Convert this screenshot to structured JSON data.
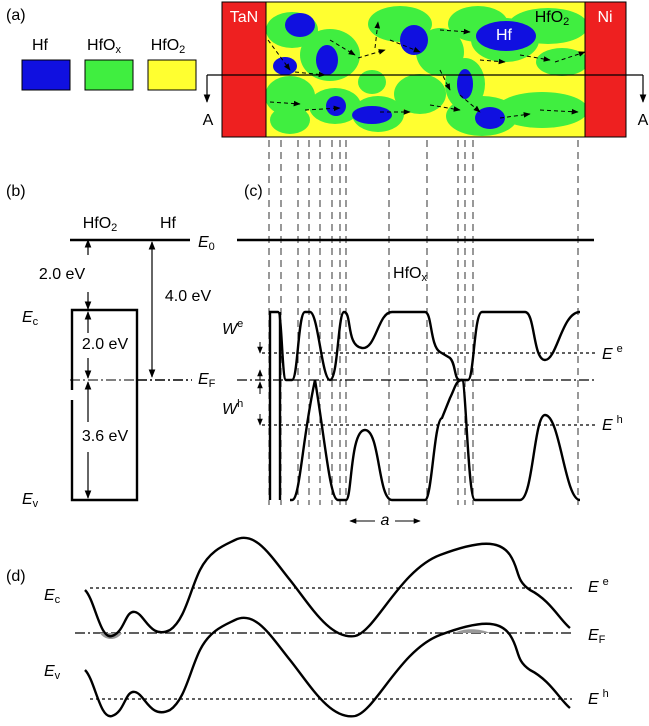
{
  "panel_labels": [
    "(a)",
    "(b)",
    "(c)",
    "(d)"
  ],
  "panel_a": {
    "electrode_left": "TaN",
    "electrode_right": "Ni",
    "electrode_color": "#ee2020",
    "matrix": {
      "base": "HfO",
      "sub": "2"
    },
    "cluster": "Hf",
    "section_left": "A",
    "section_right": "A",
    "legend": [
      {
        "base": "Hf",
        "color": "#1010e0"
      },
      {
        "base": "HfO",
        "sub": "x",
        "color": "#40ee40"
      },
      {
        "base": "HfO",
        "sub": "2",
        "color": "#ffff30"
      }
    ]
  },
  "panel_b": {
    "oxide": {
      "base": "HfO",
      "sub": "2"
    },
    "metal": "Hf",
    "vacuum": {
      "base": "E",
      "sub": "0"
    },
    "electron_affinity": "2.0 eV",
    "work_function": "4.0 eV",
    "ec_to_ef": "2.0 eV",
    "ef_to_ev": "3.6 eV",
    "conduction": {
      "base": "E",
      "sub": "c"
    },
    "fermi": {
      "base": "E",
      "sub": "F"
    },
    "valence": {
      "base": "E",
      "sub": "v"
    }
  },
  "panel_c": {
    "oxide": {
      "base": "HfO",
      "sub": "x"
    },
    "electron_barrier": {
      "base": "W",
      "sup": "e"
    },
    "hole_barrier": {
      "base": "W",
      "sup": "h"
    },
    "electron_level": {
      "base": "E",
      "sup": "e"
    },
    "hole_level": {
      "base": "E",
      "sup": "h"
    },
    "spacing": "a"
  },
  "panel_d": {
    "conduction": {
      "base": "E",
      "sub": "c"
    },
    "valence": {
      "base": "E",
      "sub": "v"
    },
    "electron_level": {
      "base": "E",
      "sup": "e"
    },
    "fermi": {
      "base": "E",
      "sub": "F"
    },
    "hole_level": {
      "base": "E",
      "sup": "h"
    }
  }
}
